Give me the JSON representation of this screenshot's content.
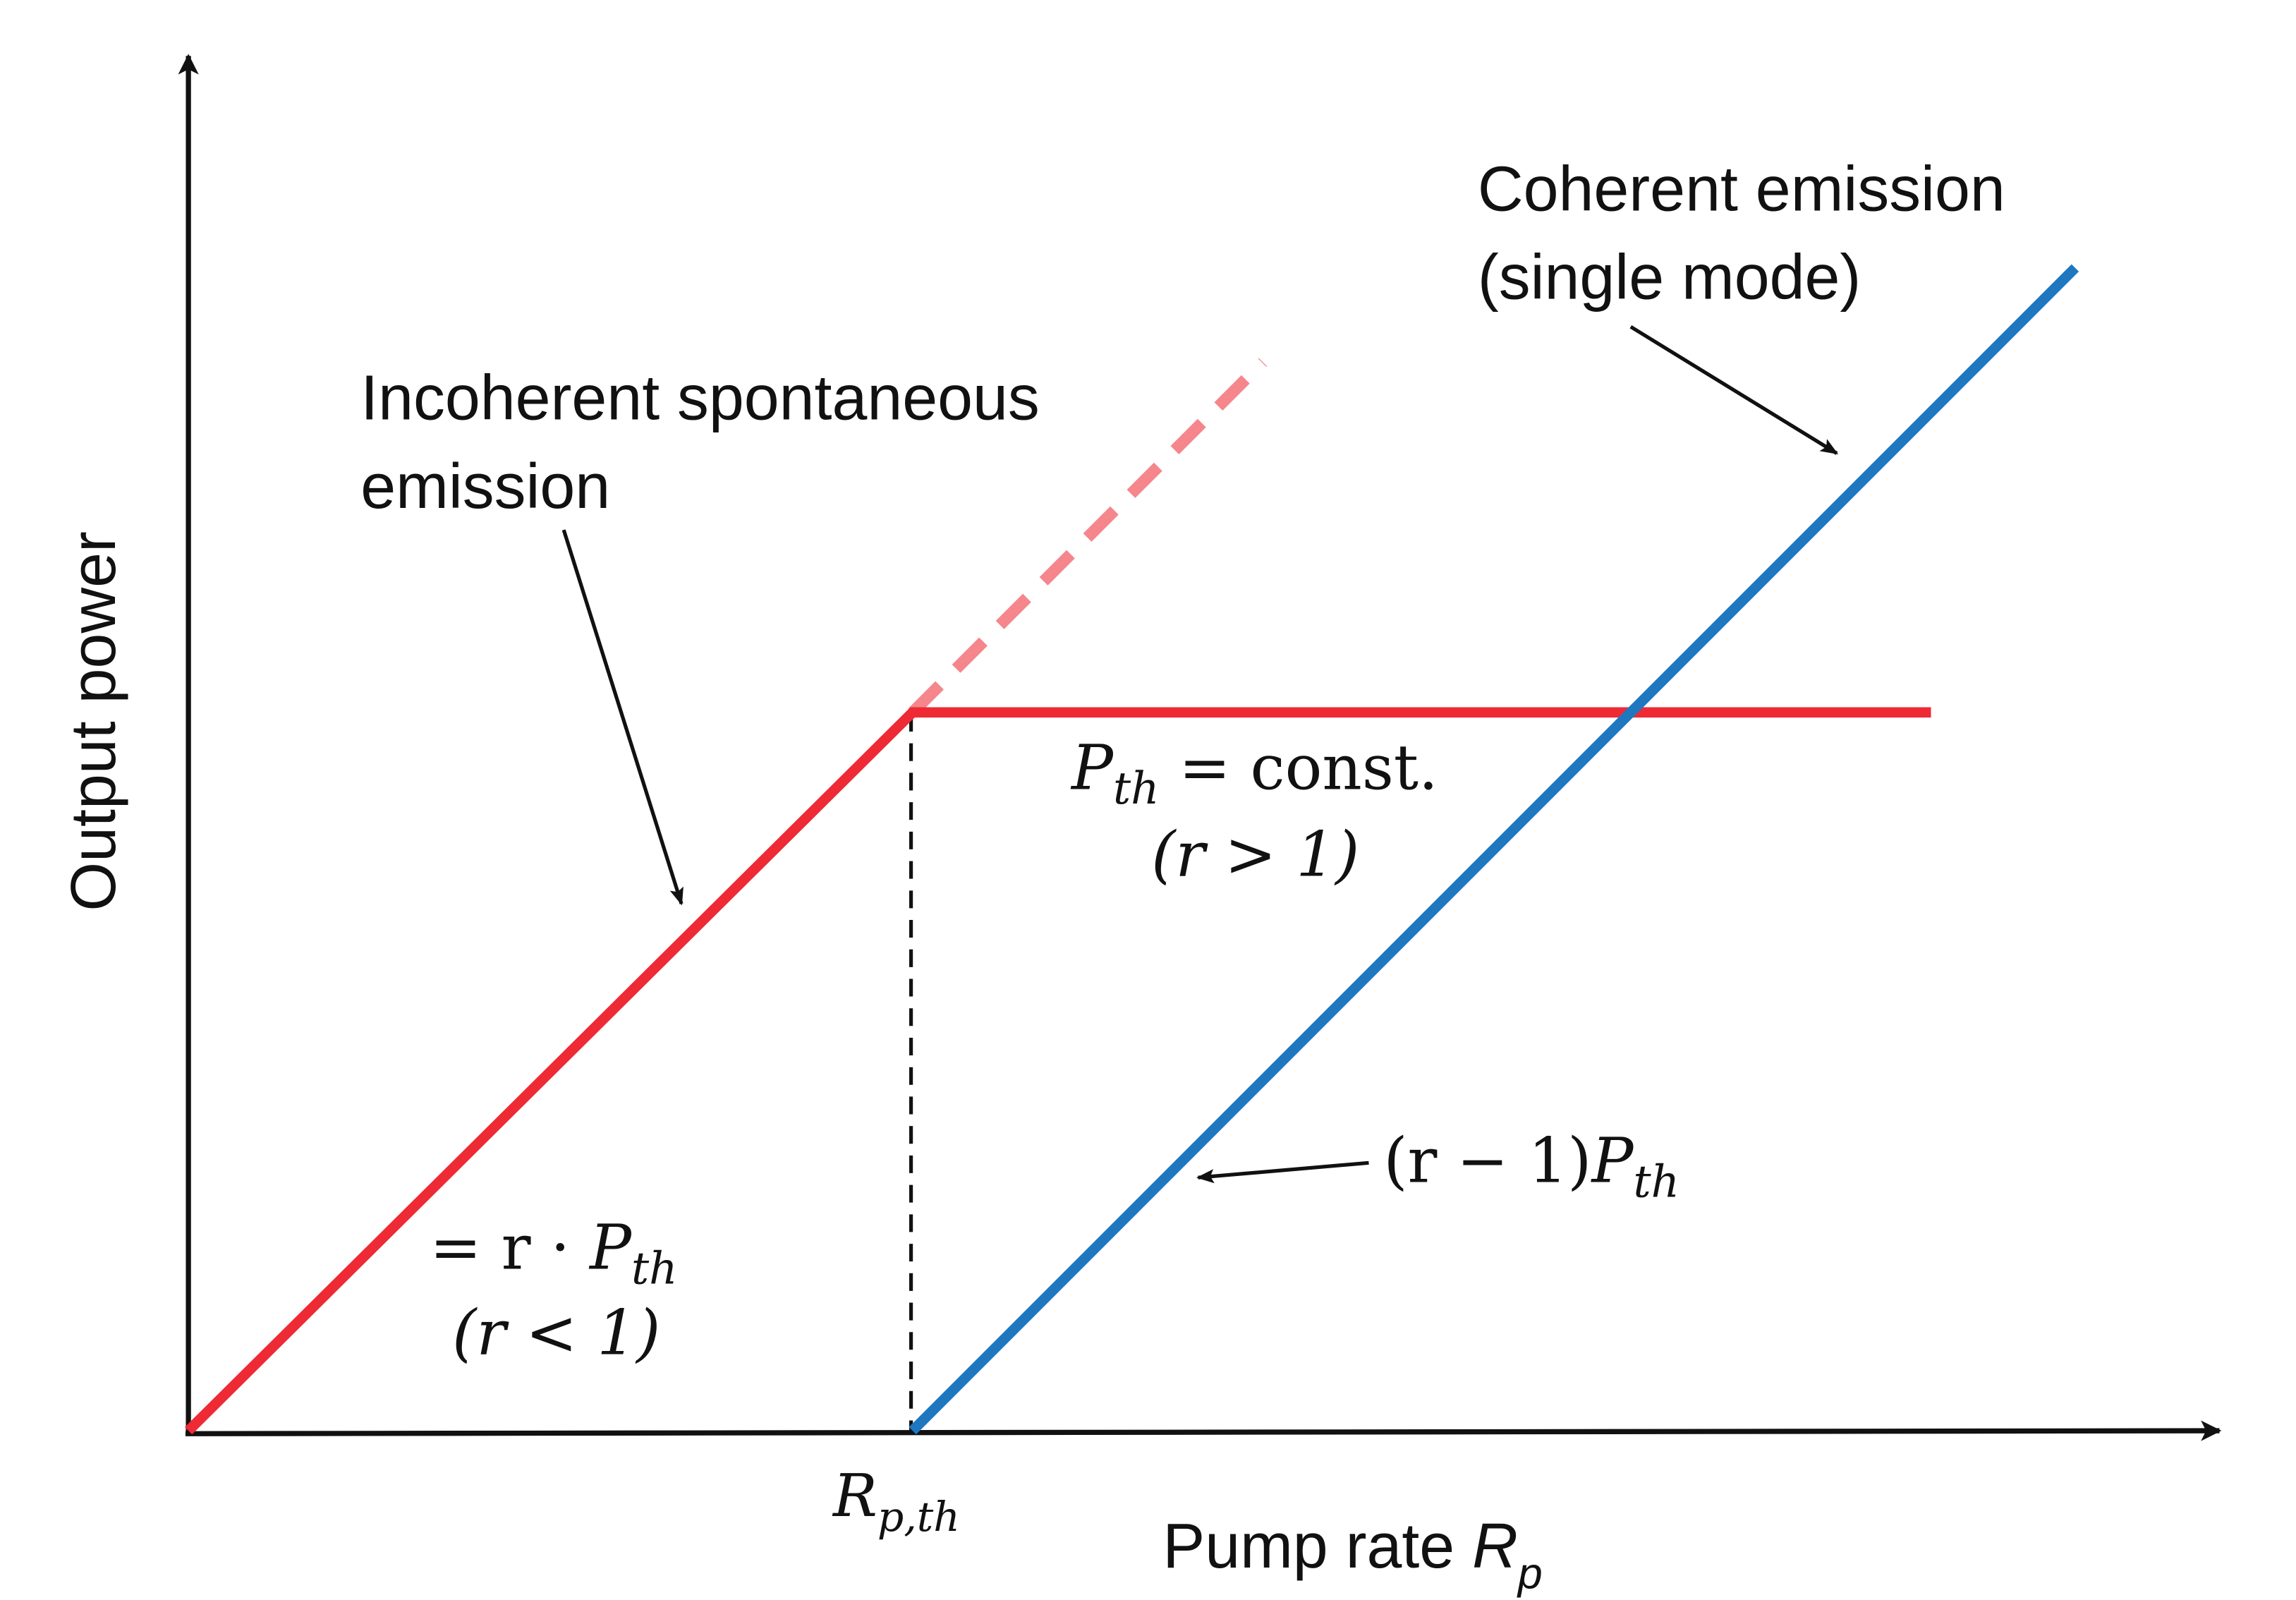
{
  "axes": {
    "y_label": "Output power",
    "x_label": "Pump rate",
    "x_label_symbol": "R",
    "x_label_subscript": "p",
    "threshold_tick": {
      "symbol": "R",
      "subscript": "p,th"
    }
  },
  "annotations": {
    "incoherent": {
      "line1": "Incoherent spontaneous",
      "line2": "emission"
    },
    "coherent": {
      "line1": "Coherent emission",
      "line2": "(single mode)"
    },
    "below_threshold": {
      "eq_prefix": "= r · ",
      "sym": "P",
      "sub": "th",
      "cond": "(r < 1)"
    },
    "above_threshold": {
      "sym": "P",
      "sub": "th",
      "eq_suffix": " = const.",
      "cond": "(r > 1)"
    },
    "coherent_power": {
      "prefix": "(r − 1)",
      "sym": "P",
      "sub": "th"
    }
  },
  "colors": {
    "spontaneous": "#ee2a35",
    "spontaneous_extrapolated": "#f4868c",
    "coherent": "#1f77c0",
    "axes": "#111111"
  }
}
